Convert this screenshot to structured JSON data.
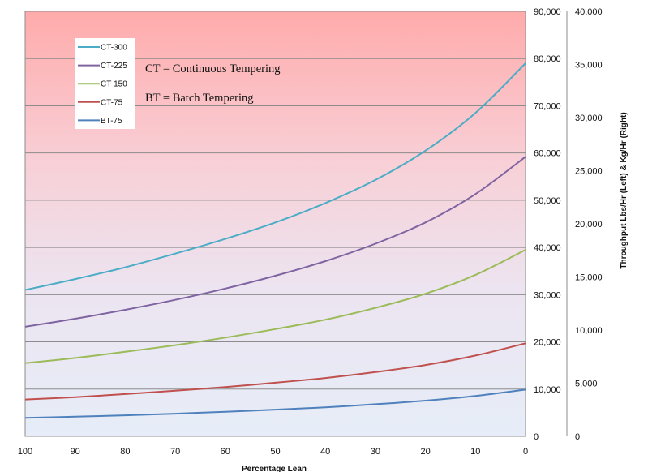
{
  "chart_data": {
    "type": "line",
    "title": "",
    "xlabel": "Percentage Lean",
    "ylabel_right": "Throughput Lbs/Hr (Left) & Kg/Hr (Right)",
    "x": [
      100,
      90,
      80,
      70,
      60,
      50,
      40,
      30,
      20,
      10,
      0
    ],
    "xlim": [
      100,
      0
    ],
    "x_ticks": [
      "100",
      "90",
      "80",
      "70",
      "60",
      "50",
      "40",
      "30",
      "20",
      "10",
      "0"
    ],
    "ylim_left": [
      0,
      90000
    ],
    "ylim_right": [
      0,
      40000
    ],
    "y_left_ticks": [
      "0",
      "10,000",
      "20,000",
      "30,000",
      "40,000",
      "50,000",
      "60,000",
      "70,000",
      "80,000",
      "90,000"
    ],
    "y_right_ticks": [
      "0",
      "5,000",
      "10,000",
      "15,000",
      "20,000",
      "25,000",
      "30,000",
      "35,000",
      "40,000"
    ],
    "grid": true,
    "legend_position": "top-left",
    "background": "gradient red (top) to light blue (bottom)",
    "series": [
      {
        "name": "CT-300",
        "color": "#4bacc6",
        "values": [
          31000,
          33300,
          35800,
          38700,
          41800,
          45300,
          49400,
          54300,
          60500,
          68500,
          79000
        ]
      },
      {
        "name": "CT-225",
        "color": "#8064a2",
        "values": [
          23200,
          24900,
          26800,
          28900,
          31300,
          34000,
          37100,
          40800,
          45300,
          51300,
          59200
        ]
      },
      {
        "name": "CT-150",
        "color": "#9bbb59",
        "values": [
          15500,
          16600,
          17900,
          19300,
          20900,
          22700,
          24700,
          27200,
          30200,
          34200,
          39500
        ]
      },
      {
        "name": "CT-75",
        "color": "#c0504d",
        "values": [
          7800,
          8300,
          8950,
          9650,
          10450,
          11350,
          12350,
          13600,
          15100,
          17100,
          19700
        ]
      },
      {
        "name": "BT-75",
        "color": "#4f81bd",
        "values": [
          3900,
          4150,
          4450,
          4800,
          5200,
          5650,
          6150,
          6800,
          7550,
          8550,
          9900
        ]
      }
    ],
    "annotations": [
      "CT = Continuous Tempering",
      "BT = Batch Tempering"
    ]
  }
}
